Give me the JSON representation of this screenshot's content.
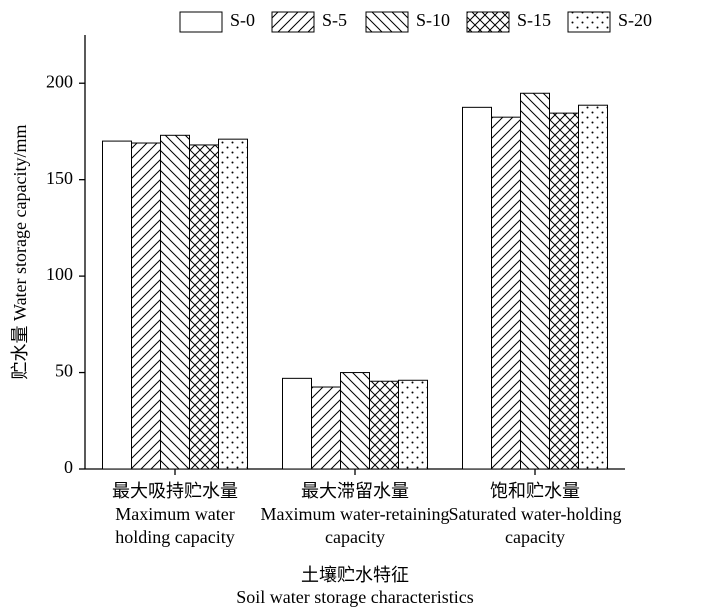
{
  "chart_data": {
    "type": "bar",
    "y_label": "贮水量 Water storage capacity/mm",
    "x_label": [
      "土壤贮水特征",
      "Soil water storage characteristics"
    ],
    "categories": [
      [
        "最大吸持贮水量",
        "Maximum water",
        "holding capacity"
      ],
      [
        "最大滞留水量",
        "Maximum water-retaining",
        "capacity"
      ],
      [
        "饱和贮水量",
        "Saturated water-holding",
        "capacity"
      ]
    ],
    "series": [
      {
        "name": "S-0",
        "pattern": "none",
        "values": [
          170,
          47,
          187.5
        ]
      },
      {
        "name": "S-5",
        "pattern": "forward",
        "values": [
          169,
          42.5,
          182.4
        ]
      },
      {
        "name": "S-10",
        "pattern": "backward",
        "values": [
          173,
          50,
          194.8
        ]
      },
      {
        "name": "S-15",
        "pattern": "cross",
        "values": [
          168,
          45.5,
          184.5
        ]
      },
      {
        "name": "S-20",
        "pattern": "dots",
        "values": [
          171,
          46,
          188.6
        ]
      }
    ],
    "color": "#000000",
    "ylim": [
      0,
      225
    ],
    "yticks": [
      0,
      50,
      100,
      150,
      200
    ],
    "legend": "top"
  }
}
